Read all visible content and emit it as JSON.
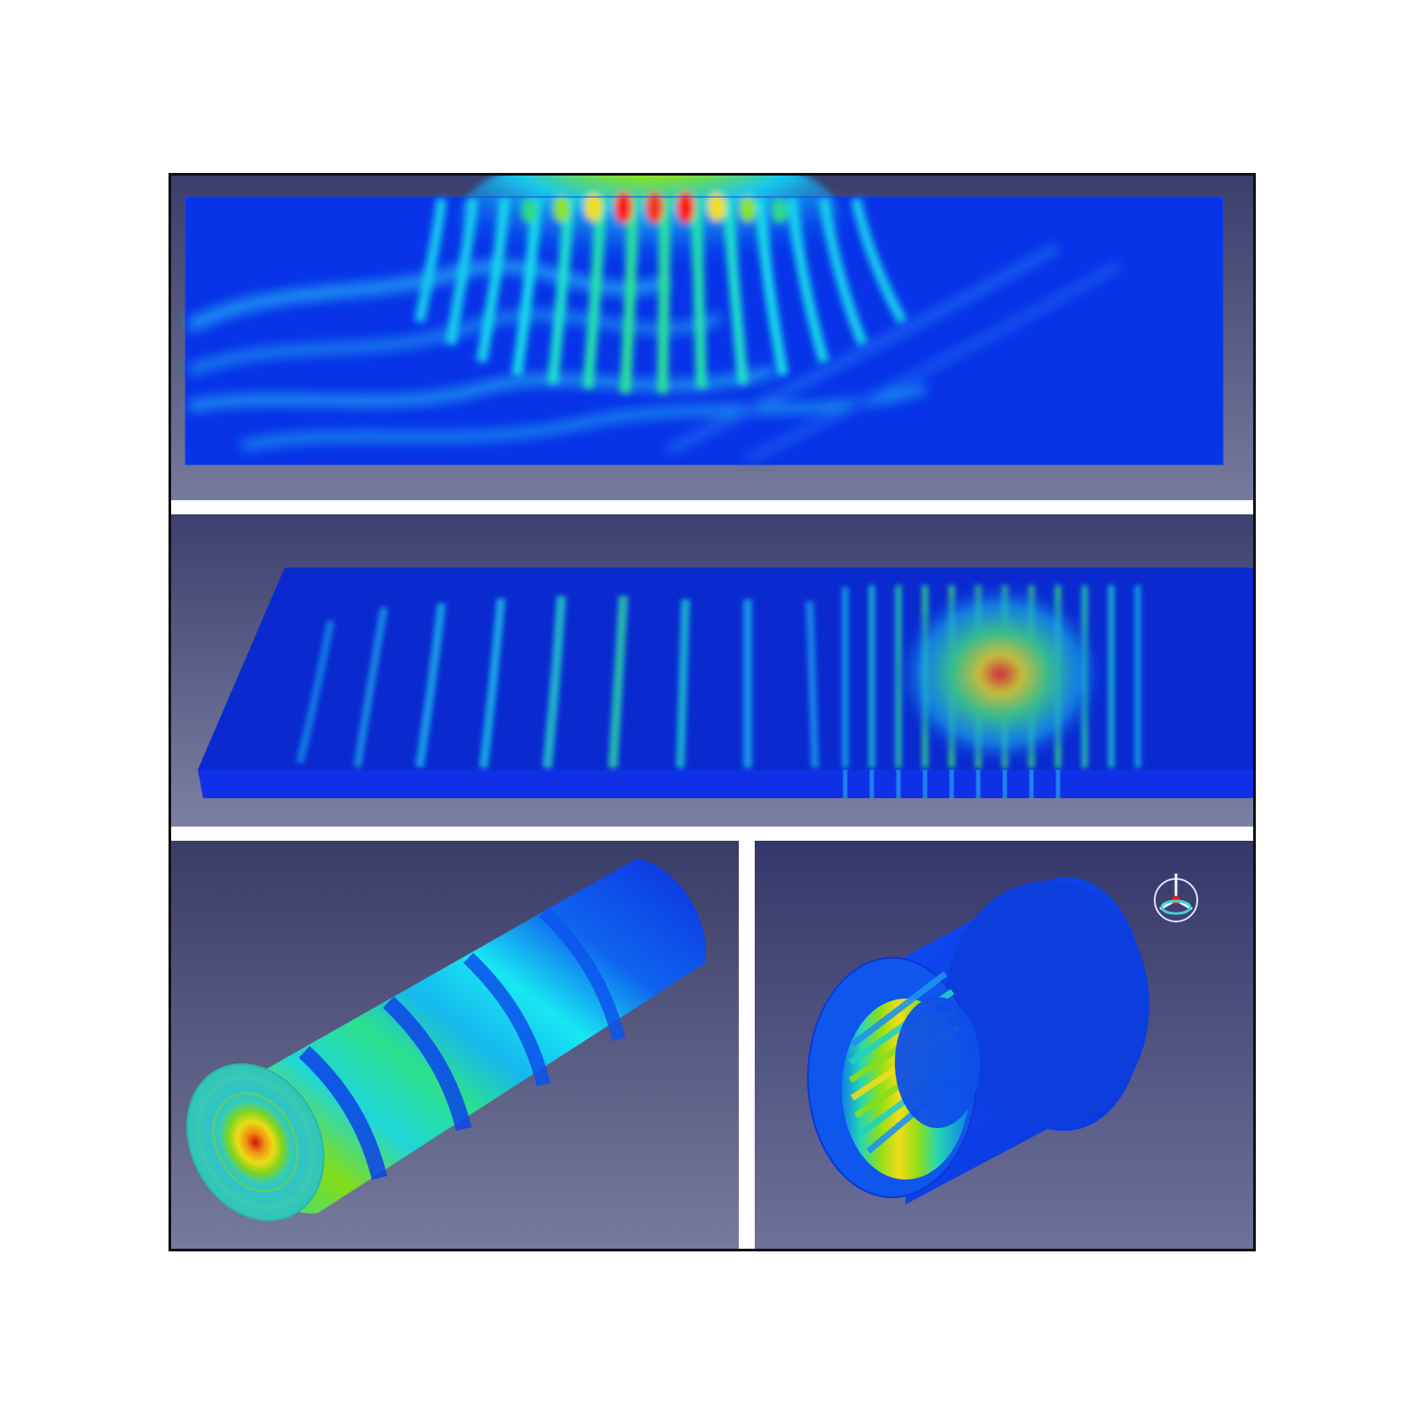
{
  "figure": {
    "panel_count": 4,
    "background_colors": {
      "dark": "#3b3d6c",
      "light": "#767a9c",
      "separator": "#ffffff",
      "frame": "#111111"
    },
    "field_colormap": [
      "#0a2bdc",
      "#0d79f2",
      "#18c9ef",
      "#30e08c",
      "#8bdd19",
      "#f1dd16",
      "#f08b11",
      "#d4141a"
    ],
    "panels": [
      {
        "name": "flat-plate-field-top-view",
        "shape": "rectangular plate"
      },
      {
        "name": "flat-plate-field-perspective-view",
        "shape": "plate slab"
      },
      {
        "name": "solid-cylinder-field",
        "shape": "solid cylinder"
      },
      {
        "name": "hollow-cylinder-field",
        "shape": "hollow cylinder section"
      }
    ],
    "icons": [
      "orientation-triad-icon"
    ]
  }
}
